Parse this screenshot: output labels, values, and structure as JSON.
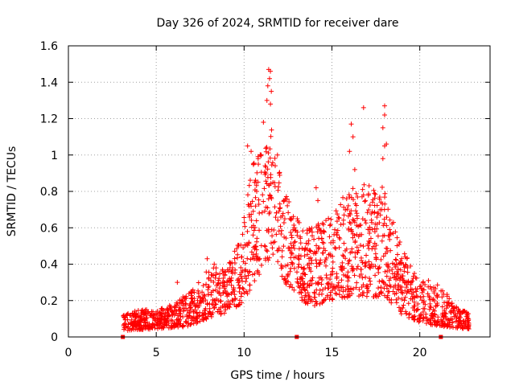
{
  "chart_data": {
    "type": "scatter",
    "title": "Day 326 of 2024, SRMTID for receiver dare",
    "xlabel": "GPS time / hours",
    "ylabel": "SRMTID / TECUs",
    "xlim": [
      0,
      24
    ],
    "ylim": [
      0,
      1.6
    ],
    "grid": true,
    "marker": "+",
    "color": "#ff0000",
    "x_ticks": [
      0,
      5,
      10,
      15,
      20
    ],
    "x_tick_labels": [
      "0",
      "5",
      "10",
      "15",
      "20"
    ],
    "y_ticks": [
      0,
      0.2,
      0.4,
      0.6,
      0.8,
      1.0,
      1.2,
      1.4,
      1.6
    ],
    "y_tick_labels": [
      "0",
      "0.2",
      "0.4",
      "0.6",
      "0.8",
      "1",
      "1.2",
      "1.4",
      "1.6"
    ],
    "zero_markers_x": [
      3.1,
      13.0,
      21.2
    ],
    "series": [
      {
        "name": "SRMTID",
        "profile": [
          {
            "t": 3.1,
            "lo": 0.03,
            "hi": 0.12
          },
          {
            "t": 4.0,
            "lo": 0.04,
            "hi": 0.15
          },
          {
            "t": 5.0,
            "lo": 0.04,
            "hi": 0.15
          },
          {
            "t": 6.0,
            "lo": 0.05,
            "hi": 0.18
          },
          {
            "t": 7.0,
            "lo": 0.06,
            "hi": 0.26
          },
          {
            "t": 8.0,
            "lo": 0.1,
            "hi": 0.38
          },
          {
            "t": 9.0,
            "lo": 0.13,
            "hi": 0.4
          },
          {
            "t": 9.8,
            "lo": 0.18,
            "hi": 0.55
          },
          {
            "t": 10.5,
            "lo": 0.28,
            "hi": 0.95
          },
          {
            "t": 11.2,
            "lo": 0.4,
            "hi": 1.05
          },
          {
            "t": 11.6,
            "lo": 0.45,
            "hi": 1.15
          },
          {
            "t": 12.3,
            "lo": 0.3,
            "hi": 0.8
          },
          {
            "t": 13.2,
            "lo": 0.2,
            "hi": 0.62
          },
          {
            "t": 14.0,
            "lo": 0.15,
            "hi": 0.62
          },
          {
            "t": 15.0,
            "lo": 0.2,
            "hi": 0.68
          },
          {
            "t": 16.0,
            "lo": 0.22,
            "hi": 0.82
          },
          {
            "t": 17.0,
            "lo": 0.22,
            "hi": 0.85
          },
          {
            "t": 18.0,
            "lo": 0.22,
            "hi": 0.82
          },
          {
            "t": 19.0,
            "lo": 0.12,
            "hi": 0.48
          },
          {
            "t": 20.0,
            "lo": 0.08,
            "hi": 0.32
          },
          {
            "t": 21.0,
            "lo": 0.06,
            "hi": 0.3
          },
          {
            "t": 22.0,
            "lo": 0.05,
            "hi": 0.18
          },
          {
            "t": 22.8,
            "lo": 0.04,
            "hi": 0.14
          }
        ],
        "peaks": [
          [
            11.4,
            1.47
          ],
          [
            11.5,
            1.46
          ],
          [
            11.45,
            1.42
          ],
          [
            11.35,
            1.38
          ],
          [
            11.55,
            1.35
          ],
          [
            11.3,
            1.3
          ],
          [
            11.5,
            1.28
          ],
          [
            11.1,
            1.18
          ],
          [
            10.2,
            1.05
          ],
          [
            10.4,
            1.02
          ],
          [
            10.8,
            0.98
          ],
          [
            11.9,
            1.0
          ],
          [
            12.0,
            0.9
          ],
          [
            16.8,
            1.26
          ],
          [
            18.0,
            1.27
          ],
          [
            18.0,
            1.22
          ],
          [
            17.9,
            1.15
          ],
          [
            16.1,
            1.17
          ],
          [
            16.2,
            1.1
          ],
          [
            18.1,
            1.06
          ],
          [
            18.0,
            1.05
          ],
          [
            16.0,
            1.02
          ],
          [
            17.9,
            0.98
          ],
          [
            14.1,
            0.82
          ],
          [
            14.2,
            0.75
          ],
          [
            7.9,
            0.43
          ],
          [
            8.3,
            0.4
          ],
          [
            6.2,
            0.3
          ],
          [
            9.2,
            0.38
          ],
          [
            16.3,
            0.92
          ]
        ]
      }
    ]
  }
}
